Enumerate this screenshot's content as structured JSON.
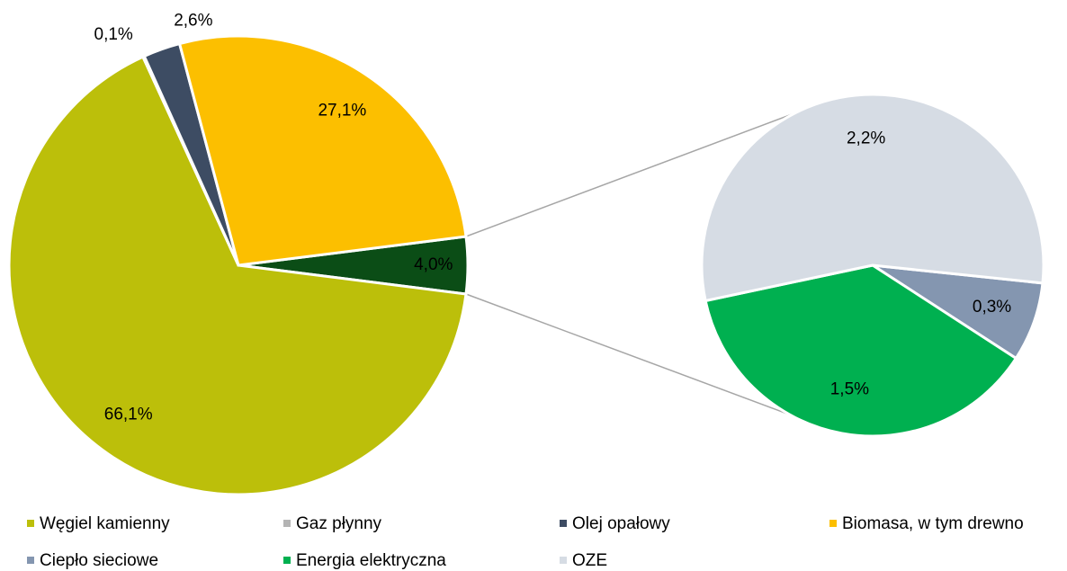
{
  "chart_data": {
    "type": "pie-of-pie",
    "main": {
      "categories": [
        "Węgiel kamienny",
        "Gaz płynny",
        "Olej opałowy",
        "Biomasa, w tym drewno"
      ],
      "values": [
        66.1,
        0.1,
        2.6,
        27.1
      ],
      "value_labels": [
        "66,1%",
        "0,1%",
        "2,6%",
        "27,1%"
      ],
      "colors": [
        "#bcbf0a",
        "#b4b4b4",
        "#3d4c63",
        "#fcbf00"
      ]
    },
    "other": {
      "value": 4.0,
      "value_label": "4,0%",
      "color": "#0b4d16"
    },
    "secondary": {
      "categories": [
        "Ciepło sieciowe",
        "Energia elektryczna",
        "OZE"
      ],
      "values": [
        0.3,
        1.5,
        2.2
      ],
      "value_labels": [
        "0,3%",
        "1,5%",
        "2,2%"
      ],
      "colors": [
        "#8496b0",
        "#00b050",
        "#d6dce4"
      ]
    }
  }
}
